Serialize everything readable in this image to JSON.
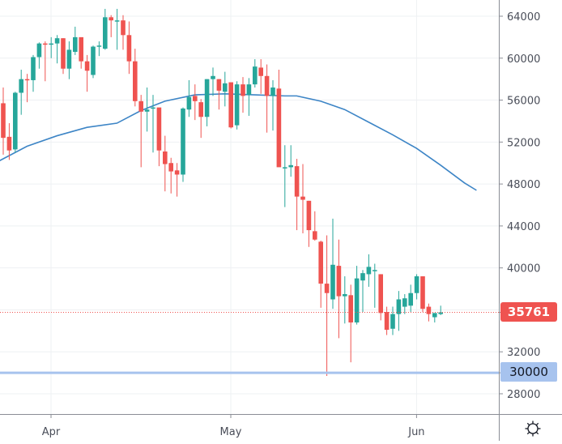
{
  "chart_data": {
    "type": "candlestick",
    "title": "",
    "xlabel": "",
    "ylabel": "",
    "ylim": [
      26800,
      65500
    ],
    "grid": true,
    "y_ticks": [
      28000,
      32000,
      36000,
      40000,
      44000,
      48000,
      52000,
      56000,
      60000,
      64000
    ],
    "y_tick_labels": [
      "28000",
      "32000",
      "40000",
      "44000",
      "48000",
      "52000",
      "56000",
      "60000",
      "64000"
    ],
    "x_tick_labels": [
      "Apr",
      "May",
      "Jun"
    ],
    "x_tick_positions_day_index": [
      9,
      39,
      70
    ],
    "last_price": 35761,
    "last_price_label": "35761",
    "horizontal_line": {
      "value": 30000,
      "label": "30000"
    },
    "colors": {
      "up": "#26a69a",
      "down": "#ef5350",
      "ma": "#3d85c6",
      "hline": "#a7c3ee",
      "last_price_bg": "#ef5350",
      "hline_label_bg": "#a7c3ee",
      "grid": "#eef0f3",
      "axis": "#8a8d95",
      "text": "#4a4e59"
    },
    "series": [
      {
        "name": "price",
        "ohlc": [
          [
            55700,
            57200,
            50800,
            52400
          ],
          [
            52500,
            53800,
            50300,
            51200
          ],
          [
            51300,
            56800,
            51000,
            56700
          ],
          [
            56700,
            58900,
            54600,
            58000
          ],
          [
            58000,
            58500,
            55800,
            57900
          ],
          [
            57900,
            60300,
            56800,
            60100
          ],
          [
            60100,
            61500,
            59000,
            61400
          ],
          [
            61400,
            61600,
            57800,
            61300
          ],
          [
            61300,
            62000,
            60000,
            61400
          ],
          [
            61400,
            62200,
            59500,
            61900
          ],
          [
            61900,
            61900,
            58500,
            59000
          ],
          [
            59000,
            61600,
            58000,
            60800
          ],
          [
            60600,
            63000,
            60300,
            62000
          ],
          [
            62000,
            61800,
            59000,
            59700
          ],
          [
            59700,
            60300,
            56800,
            58800
          ],
          [
            58400,
            61200,
            58100,
            61100
          ],
          [
            61100,
            61600,
            60200,
            61200
          ],
          [
            60900,
            64700,
            60800,
            63900
          ],
          [
            63900,
            64100,
            62000,
            63600
          ],
          [
            63600,
            64700,
            60800,
            63600
          ],
          [
            63600,
            64100,
            60800,
            62200
          ],
          [
            62200,
            63500,
            58500,
            59700
          ],
          [
            59700,
            60900,
            55400,
            55900
          ],
          [
            55900,
            56500,
            49600,
            54900
          ],
          [
            54900,
            57200,
            53000,
            55100
          ],
          [
            55200,
            56500,
            51000,
            55300
          ],
          [
            55300,
            54300,
            49700,
            51200
          ],
          [
            51100,
            52600,
            47300,
            49900
          ],
          [
            50000,
            50500,
            47100,
            49200
          ],
          [
            49300,
            50000,
            46800,
            48900
          ],
          [
            48900,
            55300,
            48200,
            55200
          ],
          [
            55100,
            57900,
            54400,
            56300
          ],
          [
            56400,
            57500,
            54100,
            55900
          ],
          [
            55800,
            56100,
            52400,
            54400
          ],
          [
            54400,
            58000,
            53500,
            58000
          ],
          [
            58000,
            59100,
            56400,
            58300
          ],
          [
            58000,
            58000,
            55100,
            56900
          ],
          [
            56800,
            58700,
            55400,
            57600
          ],
          [
            57700,
            57600,
            53300,
            53400
          ],
          [
            53600,
            57800,
            53200,
            57500
          ],
          [
            57500,
            58200,
            54800,
            56400
          ],
          [
            56500,
            58100,
            54500,
            57500
          ],
          [
            57500,
            59900,
            57200,
            59200
          ],
          [
            59100,
            59900,
            56600,
            58300
          ],
          [
            58300,
            59400,
            52900,
            56400
          ],
          [
            56400,
            57900,
            53100,
            57200
          ],
          [
            57100,
            58900,
            51900,
            49600
          ],
          [
            49600,
            51700,
            45800,
            49600
          ],
          [
            49600,
            51700,
            48700,
            49800
          ],
          [
            49700,
            50400,
            43600,
            46800
          ],
          [
            46800,
            49900,
            43300,
            46500
          ],
          [
            46400,
            46400,
            42000,
            43600
          ],
          [
            43500,
            45400,
            42600,
            42700
          ],
          [
            42500,
            42600,
            36200,
            38500
          ],
          [
            38500,
            43100,
            29700,
            37600
          ],
          [
            37000,
            44700,
            36100,
            40300
          ],
          [
            40200,
            42700,
            33300,
            37300
          ],
          [
            37300,
            39200,
            34700,
            37500
          ],
          [
            37400,
            38400,
            31000,
            34800
          ],
          [
            34800,
            40200,
            34600,
            39000
          ],
          [
            38800,
            39800,
            35800,
            39500
          ],
          [
            39400,
            41300,
            38200,
            40100
          ],
          [
            39700,
            40400,
            36200,
            39800
          ],
          [
            39400,
            39400,
            35000,
            35700
          ],
          [
            35800,
            36300,
            33600,
            34100
          ],
          [
            34200,
            36300,
            33600,
            35600
          ],
          [
            35600,
            37800,
            34000,
            37000
          ],
          [
            36300,
            37500,
            35600,
            37100
          ],
          [
            36400,
            38400,
            35800,
            37600
          ],
          [
            37600,
            39400,
            37000,
            39200
          ],
          [
            39200,
            39200,
            35800,
            36100
          ],
          [
            36300,
            36600,
            34900,
            35600
          ],
          [
            35300,
            35600,
            34800,
            35700
          ],
          [
            35600,
            36400,
            35500,
            35761
          ]
        ]
      },
      {
        "name": "moving average",
        "points": [
          [
            0,
            50100
          ],
          [
            5,
            51600
          ],
          [
            10,
            52600
          ],
          [
            15,
            53400
          ],
          [
            20,
            53800
          ],
          [
            24,
            55000
          ],
          [
            28,
            55900
          ],
          [
            33,
            56500
          ],
          [
            38,
            56600
          ],
          [
            43,
            56500
          ],
          [
            48,
            56400
          ],
          [
            50,
            56400
          ],
          [
            54,
            55900
          ],
          [
            58,
            55100
          ],
          [
            62,
            53900
          ],
          [
            66,
            52700
          ],
          [
            70,
            51400
          ],
          [
            74,
            49800
          ],
          [
            78,
            48100
          ],
          [
            80,
            47400
          ]
        ]
      }
    ]
  },
  "axis": {
    "y_labels": [
      "64000",
      "60000",
      "56000",
      "52000",
      "48000",
      "44000",
      "40000",
      "32000",
      "28000"
    ],
    "x_labels": [
      "Apr",
      "May",
      "Jun"
    ],
    "last_price_label": "35761",
    "hline_label": "30000"
  },
  "toolbar": {
    "settings_icon": "gear-icon"
  }
}
